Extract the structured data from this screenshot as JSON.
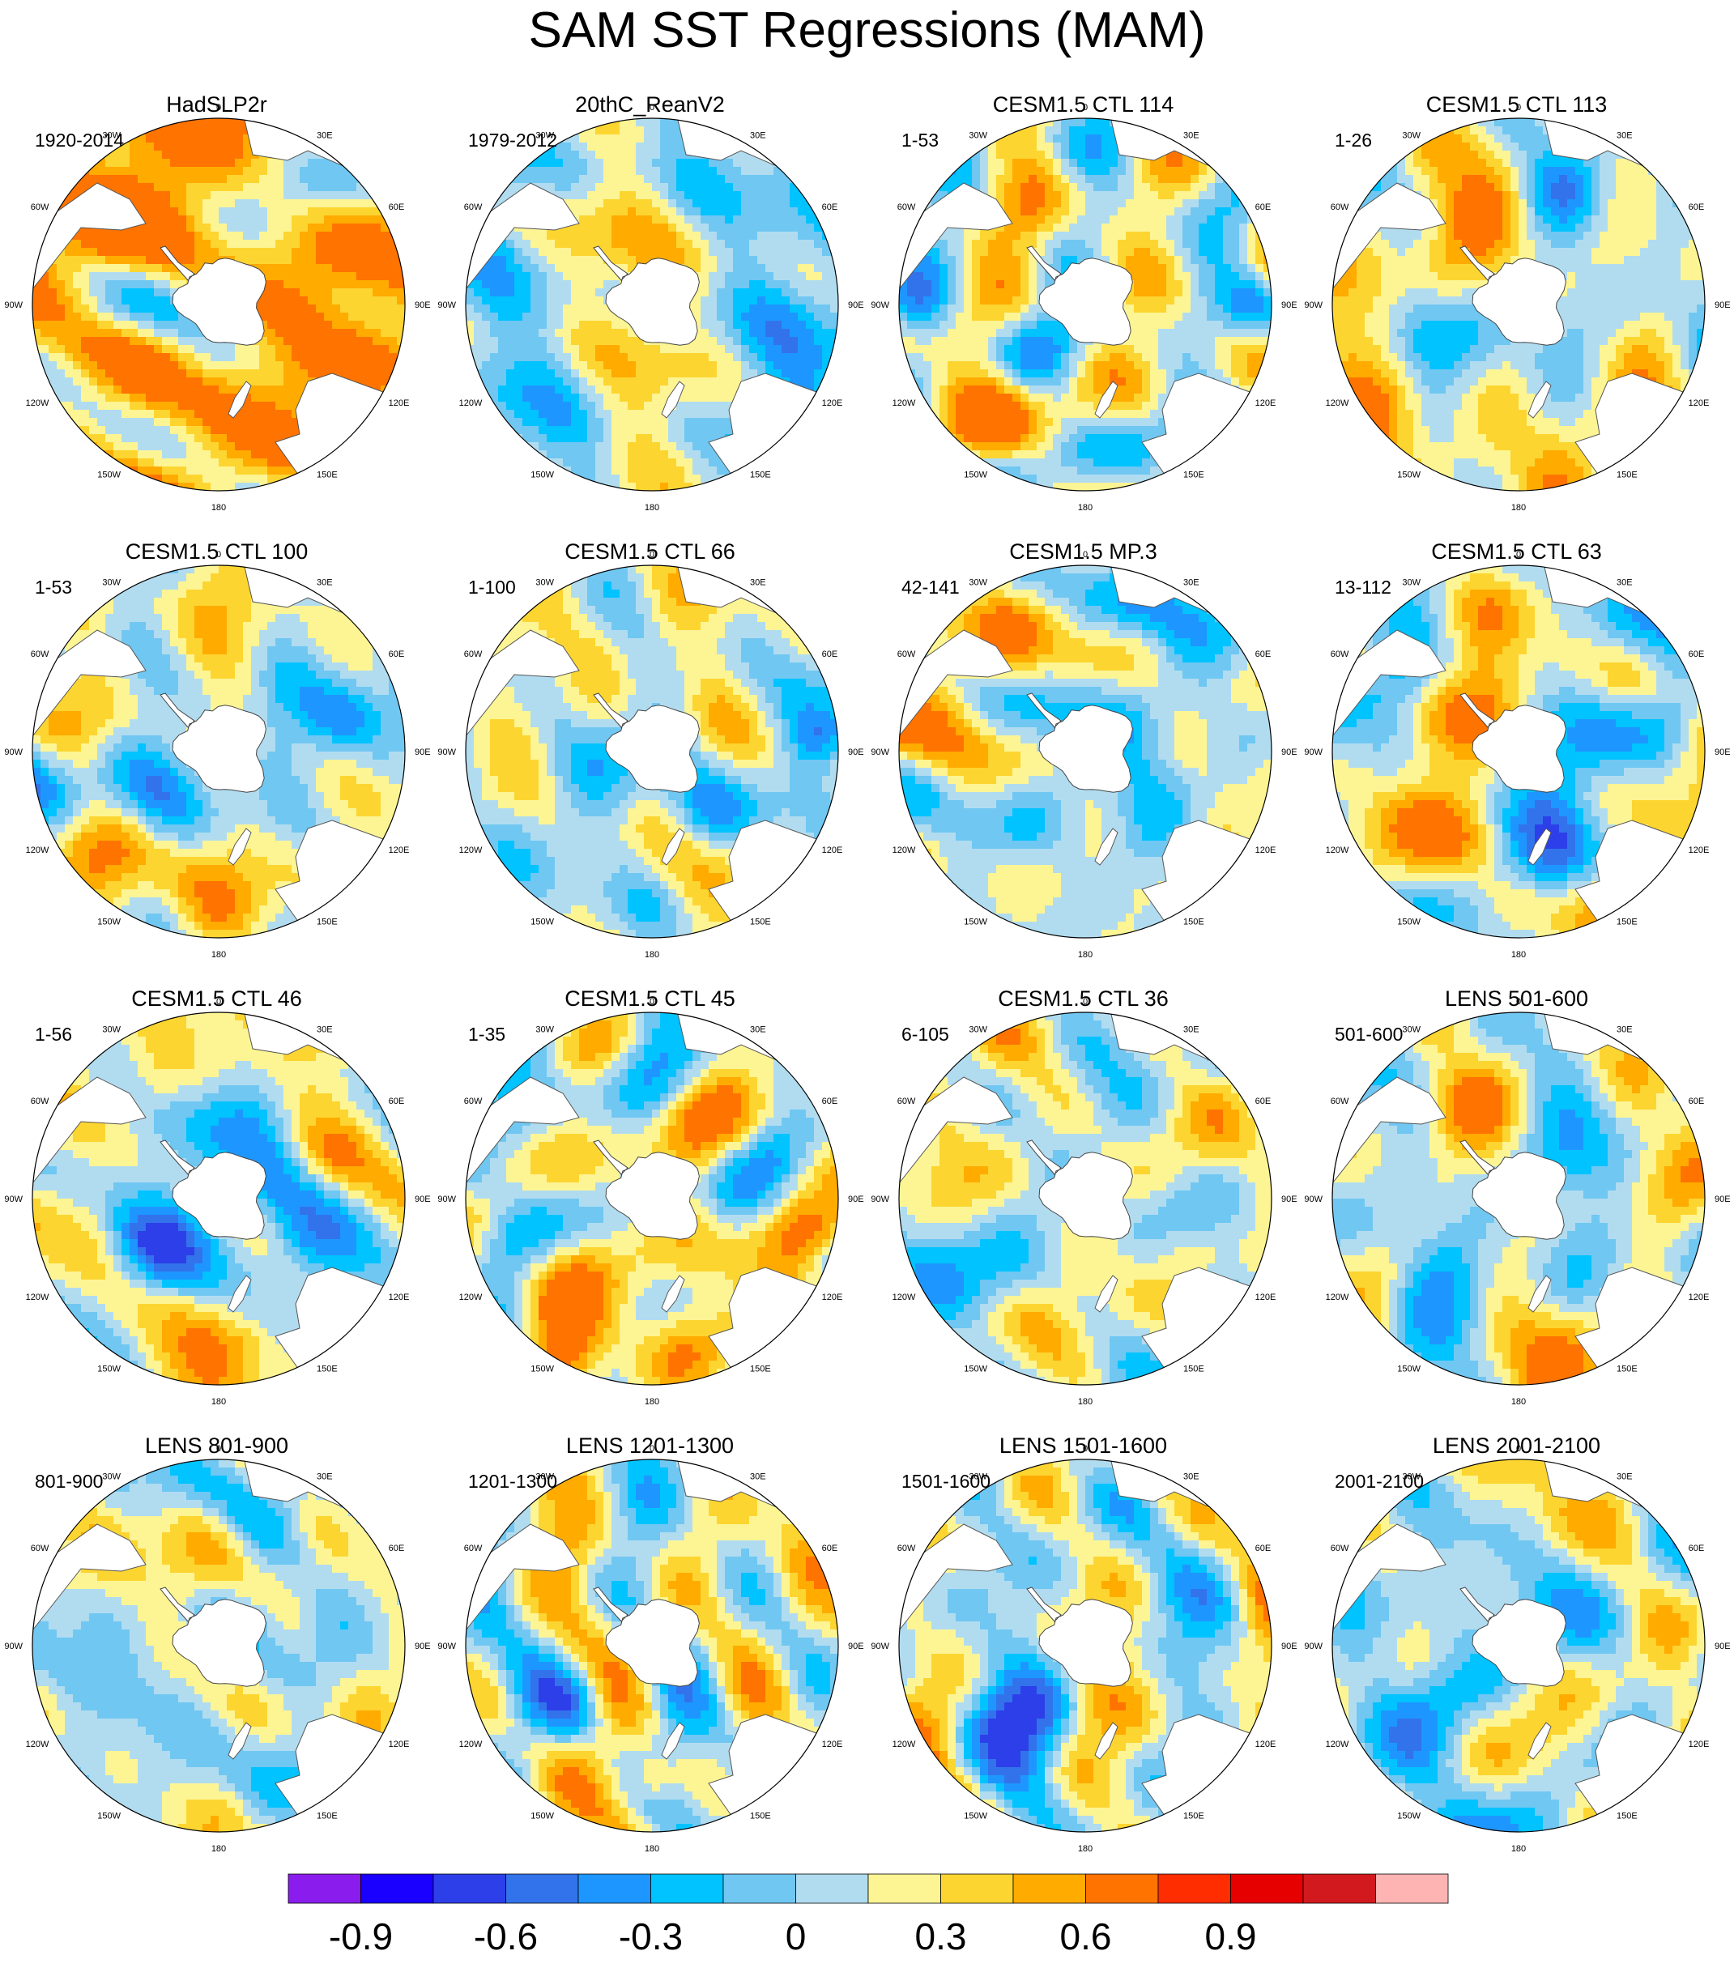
{
  "title": "SAM SST Regressions (MAM)",
  "lon_labels": [
    "0",
    "30E",
    "60E",
    "90E",
    "120E",
    "150E",
    "180",
    "150W",
    "120W",
    "90W",
    "60W",
    "30W"
  ],
  "panels": [
    {
      "title": "HadSLP2r",
      "years": "1920-2014",
      "pattern": 0
    },
    {
      "title": "20thC_ReanV2",
      "years": "1979-2012",
      "pattern": 1
    },
    {
      "title": "CESM1.5 CTL 114",
      "years": "1-53",
      "pattern": 2
    },
    {
      "title": "CESM1.5 CTL 113",
      "years": "1-26",
      "pattern": 3
    },
    {
      "title": "CESM1.5 CTL 100",
      "years": "1-53",
      "pattern": 4
    },
    {
      "title": "CESM1.5 CTL 66",
      "years": "1-100",
      "pattern": 5
    },
    {
      "title": "CESM1.5 MP.3",
      "years": "42-141",
      "pattern": 6
    },
    {
      "title": "CESM1.5 CTL 63",
      "years": "13-112",
      "pattern": 7
    },
    {
      "title": "CESM1.5 CTL 46",
      "years": "1-56",
      "pattern": 8
    },
    {
      "title": "CESM1.5 CTL 45",
      "years": "1-35",
      "pattern": 9
    },
    {
      "title": "CESM1.5 CTL 36",
      "years": "6-105",
      "pattern": 10
    },
    {
      "title": "LENS 501-600",
      "years": "501-600",
      "pattern": 11
    },
    {
      "title": "LENS 801-900",
      "years": "801-900",
      "pattern": 12
    },
    {
      "title": "LENS 1201-1300",
      "years": "1201-1300",
      "pattern": 13
    },
    {
      "title": "LENS 1501-1600",
      "years": "1501-1600",
      "pattern": 14
    },
    {
      "title": "LENS 2001-2100",
      "years": "2001-2100",
      "pattern": 15
    }
  ],
  "colorbar": {
    "colors": [
      "#8a1ded",
      "#1a00ff",
      "#2c3fe8",
      "#3273eb",
      "#1e96ff",
      "#00c3ff",
      "#70c7f2",
      "#b1dcf0",
      "#fdf594",
      "#fdd531",
      "#ffab00",
      "#ff7300",
      "#ff2d00",
      "#e60000",
      "#d2191e",
      "#ffb4b4"
    ],
    "labels": [
      "-0.9",
      "-0.6",
      "-0.3",
      "0",
      "0.3",
      "0.6",
      "0.9"
    ],
    "label_positions": [
      1,
      3,
      5,
      7,
      9,
      11,
      13
    ]
  }
}
